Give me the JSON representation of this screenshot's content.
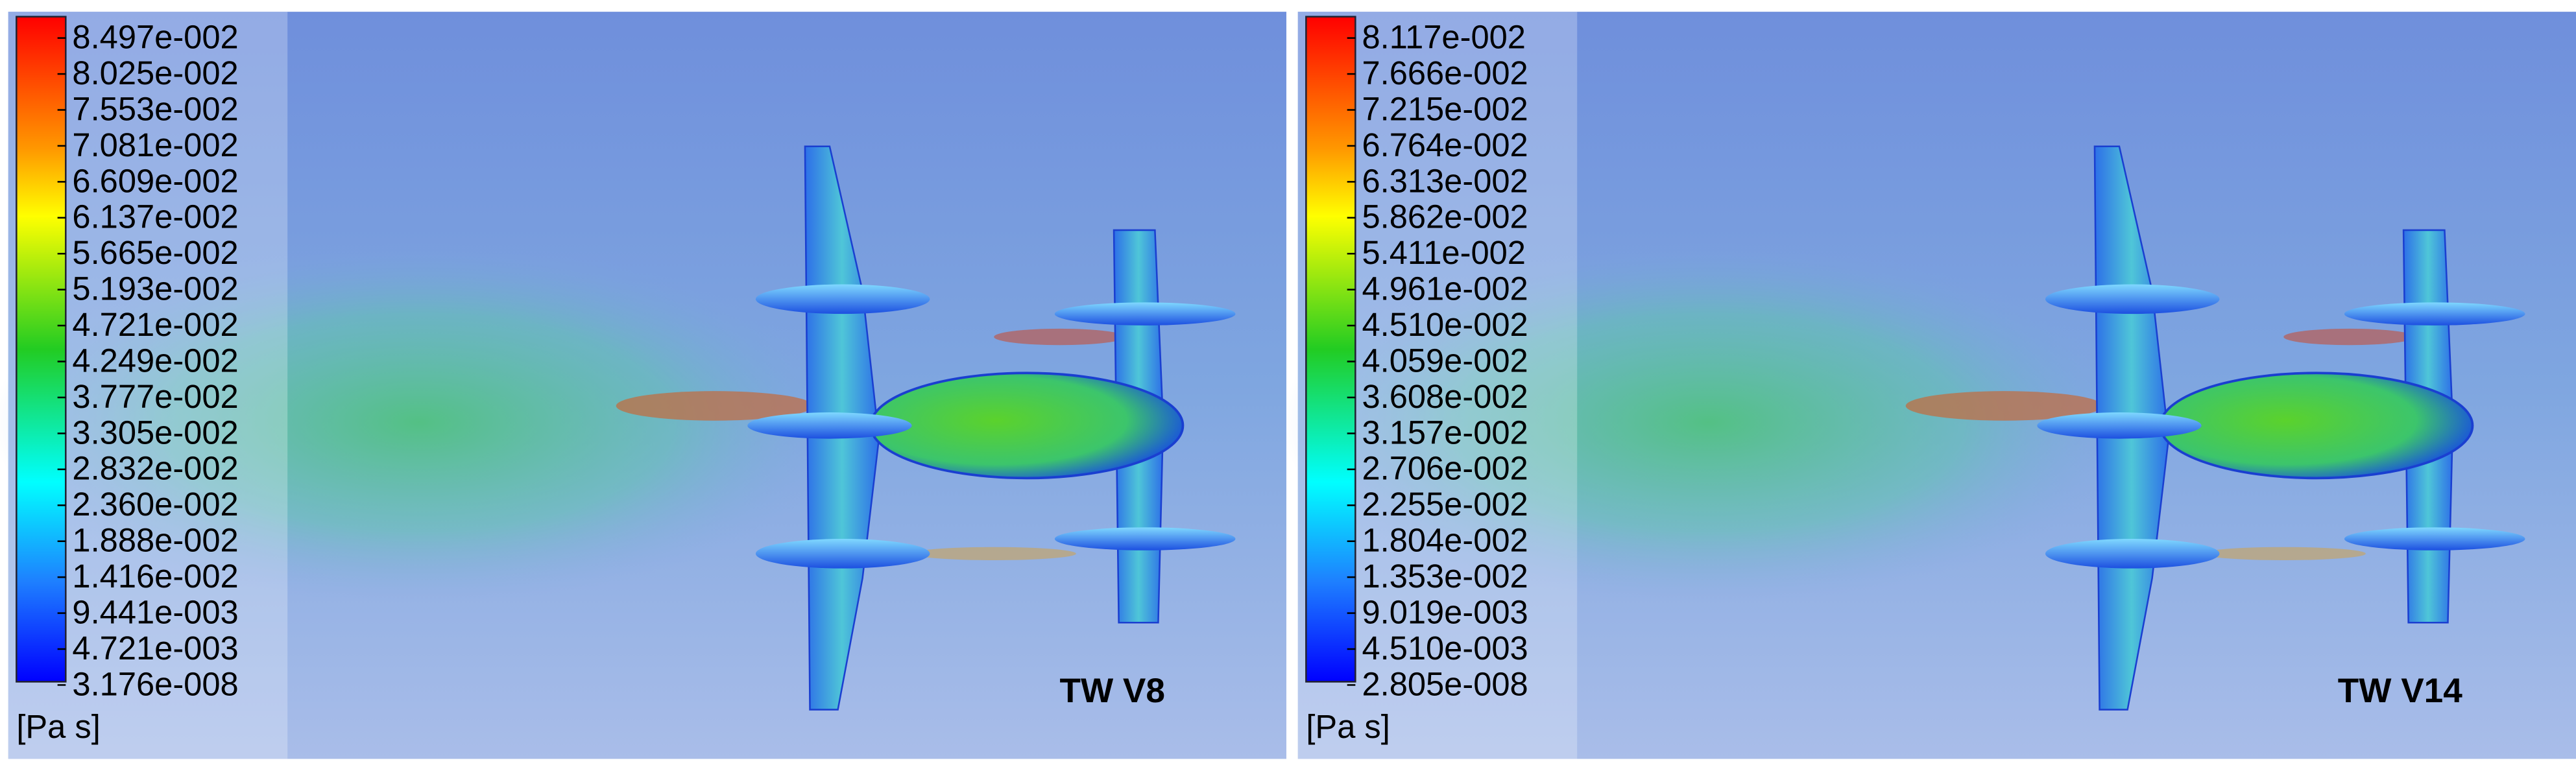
{
  "panels": [
    {
      "legend_labels": [
        "8.497e-002",
        "8.025e-002",
        "7.553e-002",
        "7.081e-002",
        "6.609e-002",
        "6.137e-002",
        "5.665e-002",
        "5.193e-002",
        "4.721e-002",
        "4.249e-002",
        "3.777e-002",
        "3.305e-002",
        "2.832e-002",
        "2.360e-002",
        "1.888e-002",
        "1.416e-002",
        "9.441e-003",
        "4.721e-003",
        "3.176e-008"
      ],
      "unit": "[Pa s]",
      "label": "TW V8"
    },
    {
      "legend_labels": [
        "8.117e-002",
        "7.666e-002",
        "7.215e-002",
        "6.764e-002",
        "6.313e-002",
        "5.862e-002",
        "5.411e-002",
        "4.961e-002",
        "4.510e-002",
        "4.059e-002",
        "3.608e-002",
        "3.157e-002",
        "2.706e-002",
        "2.255e-002",
        "1.804e-002",
        "1.353e-002",
        "9.019e-003",
        "4.510e-003",
        "2.805e-008"
      ],
      "unit": "[Pa s]",
      "label": "TW V14"
    }
  ]
}
